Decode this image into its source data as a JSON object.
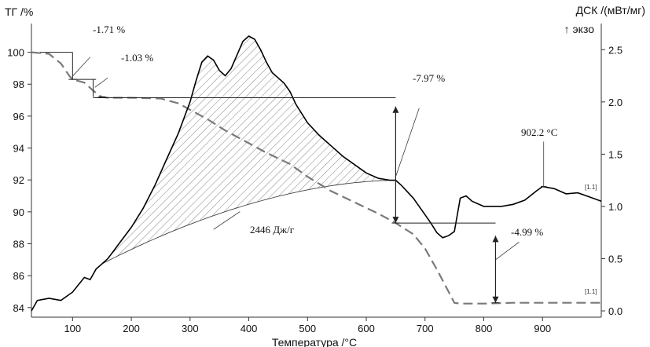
{
  "chart_data": {
    "type": "line",
    "xlabel": "Температура /°С",
    "ylabel_left": "ТГ /%",
    "ylabel_right": "ДСК /(мВт/мг)",
    "exo_label": "↑ экзо",
    "xlim": [
      30,
      1000
    ],
    "ylim_left": [
      83.4,
      101.8
    ],
    "ylim_right": [
      -0.06,
      2.75
    ],
    "x_ticks": [
      100,
      200,
      300,
      400,
      500,
      600,
      700,
      800,
      900
    ],
    "y_ticks_left": [
      84,
      86,
      88,
      90,
      92,
      94,
      96,
      98,
      100
    ],
    "y_ticks_right": [
      0.0,
      0.5,
      1.0,
      1.5,
      2.0,
      2.5
    ],
    "grid": false,
    "series": [
      {
        "name": "",
        "axis": "left",
        "style": "dashed",
        "color": "#7a7a7a",
        "x": [
          30,
          60,
          80,
          95,
          100,
          120,
          135,
          145,
          150,
          160,
          200,
          250,
          280,
          300,
          330,
          360,
          400,
          430,
          470,
          500,
          540,
          580,
          620,
          650,
          680,
          700,
          720,
          740,
          750,
          760,
          800,
          850,
          900,
          950,
          1000
        ],
        "y": [
          100.0,
          99.9,
          99.3,
          98.5,
          98.3,
          98.1,
          97.6,
          97.3,
          97.2,
          97.15,
          97.15,
          97.1,
          96.8,
          96.4,
          95.8,
          95.1,
          94.3,
          93.7,
          93.0,
          92.2,
          91.3,
          90.6,
          89.9,
          89.3,
          88.6,
          87.7,
          86.4,
          85.0,
          84.3,
          84.25,
          84.25,
          84.3,
          84.3,
          84.3,
          84.3
        ]
      },
      {
        "name": "",
        "axis": "right",
        "style": "solid",
        "color": "#000000",
        "x": [
          30,
          40,
          60,
          80,
          100,
          110,
          120,
          130,
          140,
          160,
          180,
          200,
          220,
          240,
          260,
          280,
          300,
          310,
          320,
          330,
          340,
          350,
          360,
          370,
          380,
          390,
          400,
          410,
          420,
          430,
          440,
          450,
          460,
          470,
          480,
          500,
          520,
          540,
          560,
          580,
          600,
          620,
          640,
          650,
          660,
          680,
          700,
          710,
          720,
          730,
          740,
          750,
          760,
          770,
          780,
          800,
          830,
          850,
          870,
          890,
          900,
          920,
          940,
          960,
          980,
          1000
        ],
        "y": [
          0.0,
          0.1,
          0.12,
          0.1,
          0.18,
          0.25,
          0.32,
          0.3,
          0.4,
          0.5,
          0.65,
          0.8,
          0.98,
          1.2,
          1.45,
          1.7,
          2.0,
          2.2,
          2.38,
          2.44,
          2.4,
          2.3,
          2.25,
          2.32,
          2.45,
          2.58,
          2.63,
          2.6,
          2.5,
          2.38,
          2.28,
          2.23,
          2.18,
          2.1,
          1.98,
          1.8,
          1.68,
          1.58,
          1.48,
          1.4,
          1.32,
          1.27,
          1.25,
          1.25,
          1.2,
          1.08,
          0.92,
          0.84,
          0.75,
          0.7,
          0.72,
          0.76,
          1.08,
          1.1,
          1.05,
          1.0,
          1.0,
          1.02,
          1.06,
          1.15,
          1.19,
          1.17,
          1.12,
          1.13,
          1.09,
          1.05
        ]
      }
    ],
    "annotations": {
      "step1": "-1.71 %",
      "step2": "-1.03 %",
      "step3": "-7.97 %",
      "step4": "-4.99 %",
      "peak": "902.2 °C",
      "area": "2446 Дж/г",
      "curve_tag_dsc": "[1.1]",
      "curve_tag_tg": "[1.1]"
    }
  }
}
